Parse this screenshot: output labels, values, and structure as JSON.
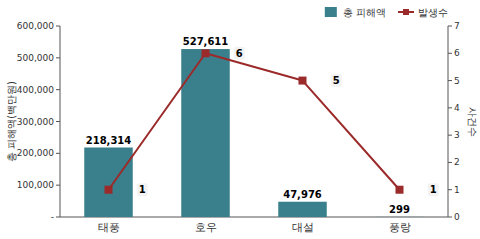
{
  "chart_data": {
    "type": "bar",
    "categories": [
      "태풍",
      "호우",
      "대설",
      "풍랑"
    ],
    "series": [
      {
        "name": "총 피해액",
        "color": "#3a7f8c",
        "values": [
          218314,
          527611,
          47976,
          299
        ],
        "value_labels": [
          "218,314",
          "527,611",
          "47,976",
          "299"
        ]
      },
      {
        "name": "발생수",
        "type": "line",
        "axis": "y2",
        "color": "#9b2a2a",
        "marker": "square",
        "values": [
          1,
          6,
          5,
          1
        ]
      }
    ],
    "ylabel": "총 피해액(백만원)",
    "y2label": "사건수",
    "ylim": [
      0,
      600000
    ],
    "yticks": [
      {
        "value": 0,
        "label": "-"
      },
      {
        "value": 100000,
        "label": "100,000"
      },
      {
        "value": 200000,
        "label": "200,000"
      },
      {
        "value": 300000,
        "label": "300,000"
      },
      {
        "value": 400000,
        "label": "400,000"
      },
      {
        "value": 500000,
        "label": "500,000"
      },
      {
        "value": 600000,
        "label": "600,000"
      }
    ],
    "y2lim": [
      0,
      7
    ],
    "y2ticks": [
      0,
      1,
      2,
      3,
      4,
      5,
      6,
      7
    ],
    "data_labels": true,
    "legend": "upper right",
    "grid": false
  }
}
